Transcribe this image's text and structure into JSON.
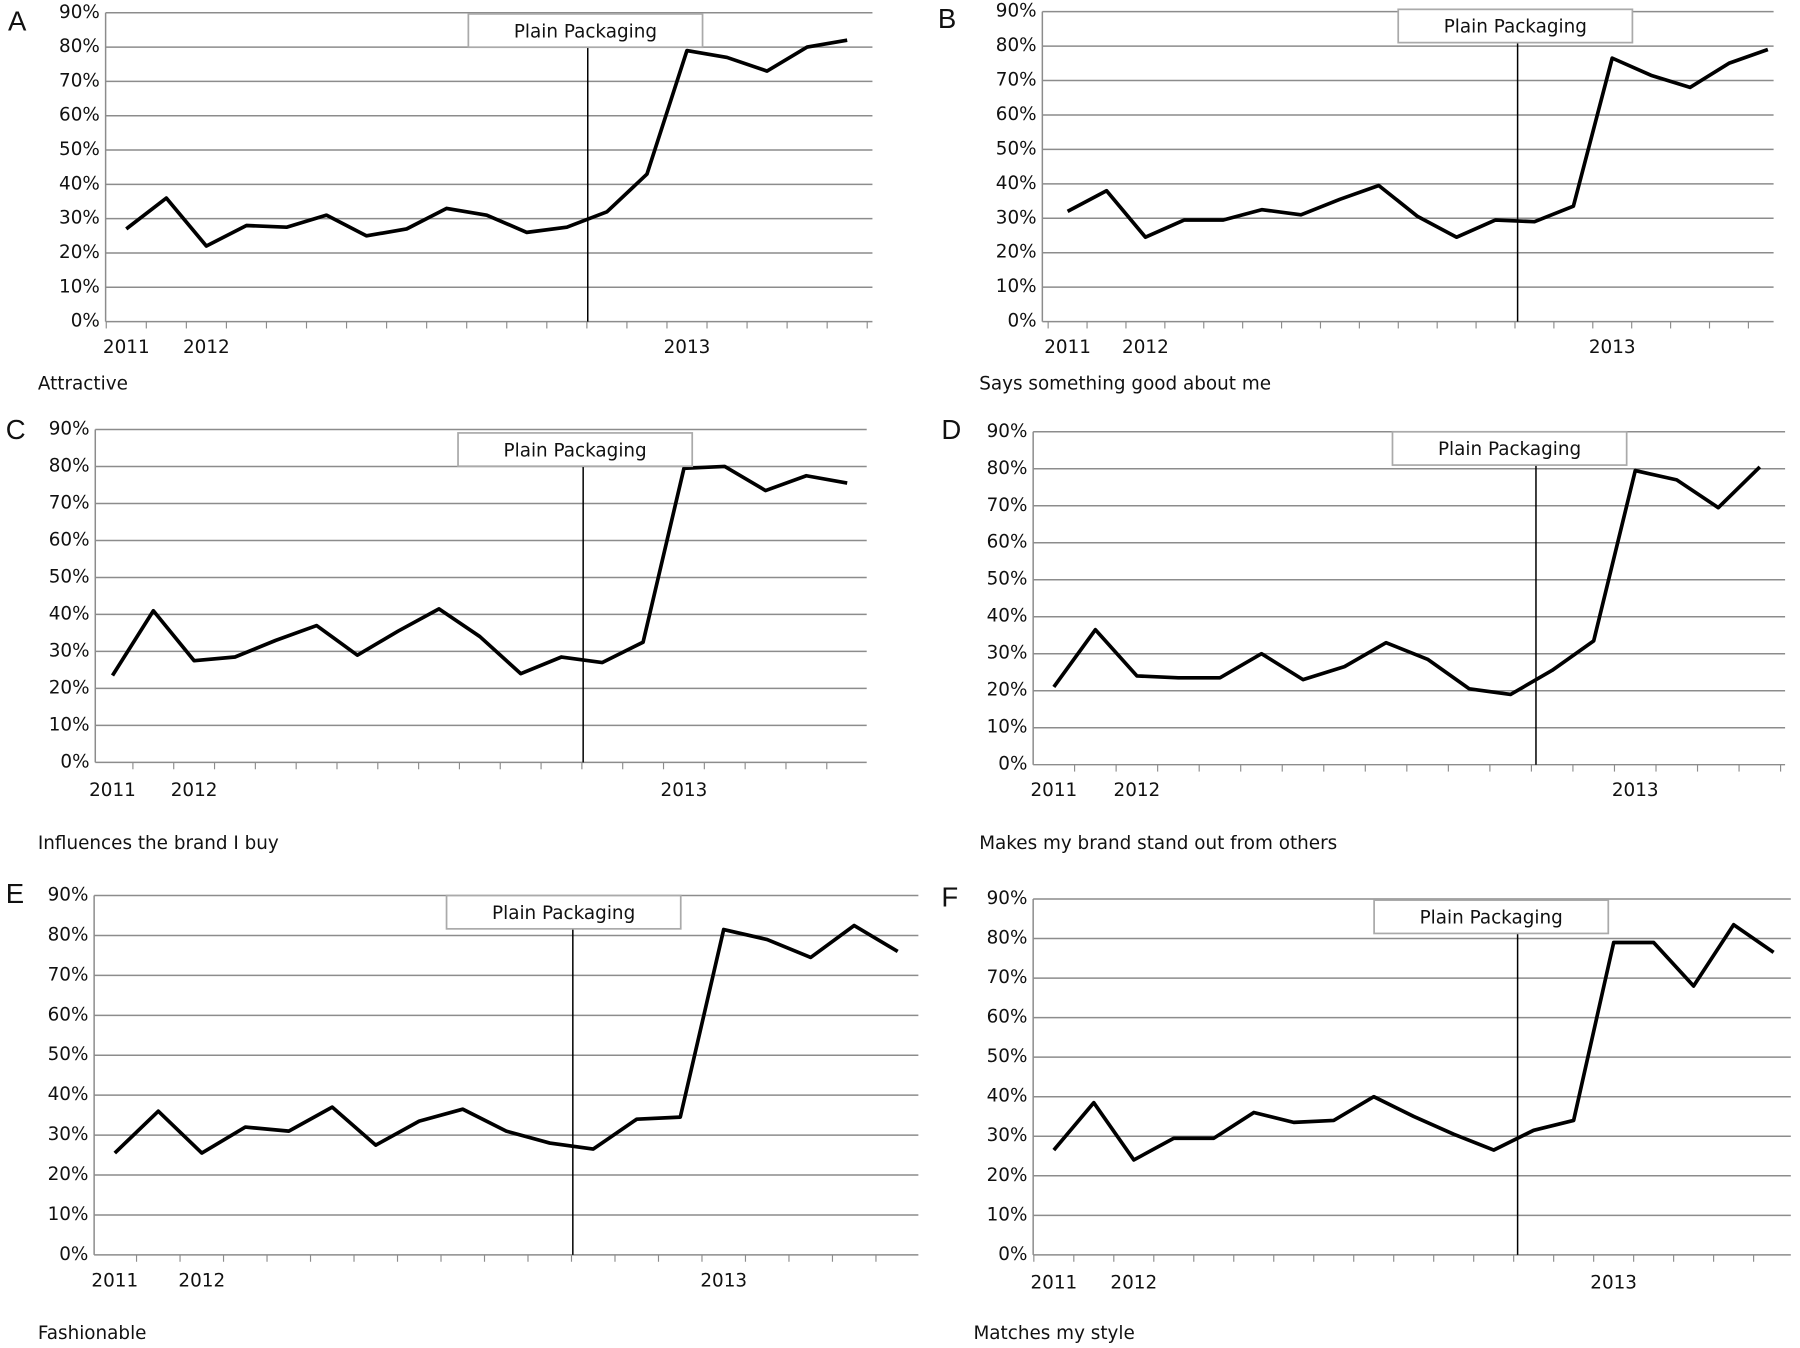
{
  "chart_data": [
    {
      "type": "line",
      "label": "A",
      "title": "Attractive",
      "annotation": "Plain Packaging",
      "color": "#000000",
      "categories": [
        "2011",
        null,
        "2012",
        null,
        null,
        null,
        null,
        null,
        null,
        null,
        null,
        null,
        null,
        null,
        "2013",
        null,
        null,
        null,
        null
      ],
      "values": [
        27,
        36,
        22,
        28,
        27.5,
        31,
        25,
        27,
        33,
        31,
        26,
        27.5,
        32,
        43,
        79,
        77,
        73,
        80,
        82
      ],
      "ylim": [
        0,
        90
      ],
      "yticks": [
        {
          "value": 0,
          "label": "0%"
        },
        {
          "value": 10,
          "label": "10%"
        },
        {
          "value": 20,
          "label": "20%"
        },
        {
          "value": 30,
          "label": "30%"
        },
        {
          "value": 40,
          "label": "40%"
        },
        {
          "value": 50,
          "label": "50%"
        },
        {
          "value": 60,
          "label": "60%"
        },
        {
          "value": 70,
          "label": "70%"
        },
        {
          "value": 80,
          "label": "80%"
        },
        {
          "value": 90,
          "label": "90%"
        }
      ],
      "grid": true
    },
    {
      "type": "line",
      "label": "B",
      "title": "Says something good about me",
      "annotation": "Plain Packaging",
      "color": "#000000",
      "categories": [
        "2011",
        null,
        "2012",
        null,
        null,
        null,
        null,
        null,
        null,
        null,
        null,
        null,
        null,
        null,
        "2013",
        null,
        null,
        null,
        null
      ],
      "values": [
        32,
        38,
        24.5,
        29.5,
        29.5,
        32.5,
        31,
        35.5,
        39.5,
        30.5,
        24.5,
        29.5,
        29,
        33.5,
        76.5,
        71.5,
        68,
        75,
        79
      ],
      "ylim": [
        0,
        90
      ],
      "yticks": [
        {
          "value": 0,
          "label": "0%"
        },
        {
          "value": 10,
          "label": "10%"
        },
        {
          "value": 20,
          "label": "20%"
        },
        {
          "value": 30,
          "label": "30%"
        },
        {
          "value": 40,
          "label": "40%"
        },
        {
          "value": 50,
          "label": "50%"
        },
        {
          "value": 60,
          "label": "60%"
        },
        {
          "value": 70,
          "label": "70%"
        },
        {
          "value": 80,
          "label": "80%"
        },
        {
          "value": 90,
          "label": "90%"
        }
      ],
      "grid": true
    },
    {
      "type": "line",
      "label": "C",
      "title": "Influences the brand I buy",
      "annotation": "Plain Packaging",
      "color": "#000000",
      "categories": [
        "2011",
        null,
        "2012",
        null,
        null,
        null,
        null,
        null,
        null,
        null,
        null,
        null,
        null,
        null,
        "2013",
        null,
        null,
        null,
        null
      ],
      "values": [
        23.5,
        41,
        27.5,
        28.5,
        33,
        37,
        29,
        35.5,
        41.5,
        34,
        24,
        28.5,
        27,
        32.5,
        79.5,
        80,
        73.5,
        77.5,
        75.5
      ],
      "ylim": [
        0,
        90
      ],
      "yticks": [
        {
          "value": 0,
          "label": "0%"
        },
        {
          "value": 10,
          "label": "10%"
        },
        {
          "value": 20,
          "label": "20%"
        },
        {
          "value": 30,
          "label": "30%"
        },
        {
          "value": 40,
          "label": "40%"
        },
        {
          "value": 50,
          "label": "50%"
        },
        {
          "value": 60,
          "label": "60%"
        },
        {
          "value": 70,
          "label": "70%"
        },
        {
          "value": 80,
          "label": "80%"
        },
        {
          "value": 90,
          "label": "90%"
        }
      ],
      "grid": true
    },
    {
      "type": "line",
      "label": "D",
      "title": "Makes my brand stand out from others",
      "annotation": "Plain Packaging",
      "color": "#000000",
      "categories": [
        "2011",
        null,
        "2012",
        null,
        null,
        null,
        null,
        null,
        null,
        null,
        null,
        null,
        null,
        null,
        "2013",
        null,
        null,
        null
      ],
      "values": [
        21,
        36.5,
        24,
        23.5,
        23.5,
        30,
        23,
        26.5,
        33,
        28.5,
        20.5,
        19,
        25.5,
        33.5,
        79.5,
        77,
        69.5,
        80.5
      ],
      "ylim": [
        0,
        90
      ],
      "yticks": [
        {
          "value": 0,
          "label": "0%"
        },
        {
          "value": 10,
          "label": "10%"
        },
        {
          "value": 20,
          "label": "20%"
        },
        {
          "value": 30,
          "label": "30%"
        },
        {
          "value": 40,
          "label": "40%"
        },
        {
          "value": 50,
          "label": "50%"
        },
        {
          "value": 60,
          "label": "60%"
        },
        {
          "value": 70,
          "label": "70%"
        },
        {
          "value": 80,
          "label": "80%"
        },
        {
          "value": 90,
          "label": "90%"
        }
      ],
      "grid": true
    },
    {
      "type": "line",
      "label": "E",
      "title": "Fashionable",
      "annotation": "Plain Packaging",
      "color": "#000000",
      "categories": [
        "2011",
        null,
        "2012",
        null,
        null,
        null,
        null,
        null,
        null,
        null,
        null,
        null,
        null,
        null,
        "2013",
        null,
        null,
        null,
        null
      ],
      "values": [
        25.5,
        36,
        25.5,
        32,
        31,
        37,
        27.5,
        33.5,
        36.5,
        31,
        28,
        26.5,
        34,
        34.5,
        81.5,
        79,
        74.5,
        82.5,
        76
      ],
      "ylim": [
        0,
        90
      ],
      "yticks": [
        {
          "value": 0,
          "label": "0%"
        },
        {
          "value": 10,
          "label": "10%"
        },
        {
          "value": 20,
          "label": "20%"
        },
        {
          "value": 30,
          "label": "30%"
        },
        {
          "value": 40,
          "label": "40%"
        },
        {
          "value": 50,
          "label": "50%"
        },
        {
          "value": 60,
          "label": "60%"
        },
        {
          "value": 70,
          "label": "70%"
        },
        {
          "value": 80,
          "label": "80%"
        },
        {
          "value": 90,
          "label": "90%"
        }
      ],
      "grid": true
    },
    {
      "type": "line",
      "label": "F",
      "title": "Matches my style",
      "annotation": "Plain Packaging",
      "color": "#000000",
      "categories": [
        "2011",
        null,
        "2012",
        null,
        null,
        null,
        null,
        null,
        null,
        null,
        null,
        null,
        null,
        null,
        "2013",
        null,
        null,
        null,
        null
      ],
      "values": [
        26.5,
        38.5,
        24,
        29.5,
        29.5,
        36,
        33.5,
        34,
        40,
        35,
        30.5,
        26.5,
        31.5,
        34,
        79,
        79,
        68,
        83.5,
        76.5
      ],
      "ylim": [
        0,
        90
      ],
      "yticks": [
        {
          "value": 0,
          "label": "0%"
        },
        {
          "value": 10,
          "label": "10%"
        },
        {
          "value": 20,
          "label": "20%"
        },
        {
          "value": 30,
          "label": "30%"
        },
        {
          "value": 40,
          "label": "40%"
        },
        {
          "value": 50,
          "label": "50%"
        },
        {
          "value": 60,
          "label": "60%"
        },
        {
          "value": 70,
          "label": "70%"
        },
        {
          "value": 80,
          "label": "80%"
        },
        {
          "value": 90,
          "label": "90%"
        }
      ],
      "grid": true
    }
  ]
}
